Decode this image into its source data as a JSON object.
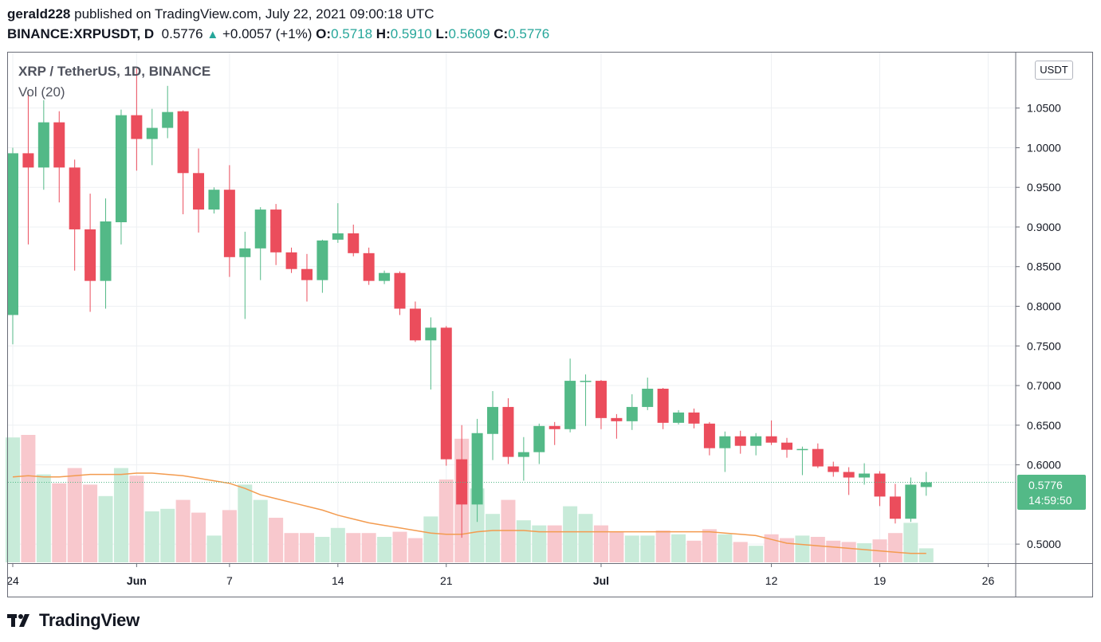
{
  "header": {
    "author": "gerald228",
    "published_text": "published on TradingView.com, July 22, 2021 09:00:18 UTC",
    "symbol_line": "BINANCE:XRPUSDT, D",
    "last": "0.5776",
    "change": "+0.0057 (+1%)",
    "o_label": "O:",
    "o_value": "0.5718",
    "h_label": "H:",
    "h_value": "0.5910",
    "l_label": "L:",
    "l_value": "0.5609",
    "c_label": "C:",
    "c_value": "0.5776"
  },
  "legend": {
    "title": "XRP / TetherUS, 1D, BINANCE",
    "volume": "Vol (20)"
  },
  "axis": {
    "unit": "USDT"
  },
  "price_tag": {
    "price": "0.5776",
    "countdown": "14:59:50"
  },
  "footer": {
    "brand": "TradingView"
  },
  "colors": {
    "up": "#53b987",
    "down": "#eb4d5c",
    "vol_up": "#c8ebd9",
    "vol_down": "#f8c8cd",
    "ma": "#f39b4f"
  },
  "chart_data": {
    "type": "candlestick",
    "title": "XRP / TetherUS, 1D, BINANCE",
    "y_ticks": [
      "1.0500",
      "1.0000",
      "0.9500",
      "0.9000",
      "0.8500",
      "0.8000",
      "0.7500",
      "0.7000",
      "0.6500",
      "0.6000",
      "0.5000"
    ],
    "y_tick_values": [
      1.05,
      1.0,
      0.95,
      0.9,
      0.85,
      0.8,
      0.75,
      0.7,
      0.65,
      0.6,
      0.5
    ],
    "x_ticks": [
      "24",
      "Jun",
      "7",
      "14",
      "21",
      "Jul",
      "12",
      "19",
      "26"
    ],
    "x_tick_days": [
      0,
      8,
      14,
      21,
      28,
      38,
      49,
      56,
      63
    ],
    "ylim": [
      0.476,
      1.12
    ],
    "candles": [
      {
        "d": 0,
        "o": 0.789,
        "h": 1.0,
        "l": 0.752,
        "c": 0.993
      },
      {
        "d": 1,
        "o": 0.993,
        "h": 1.07,
        "l": 0.878,
        "c": 0.975
      },
      {
        "d": 2,
        "o": 0.975,
        "h": 1.06,
        "l": 0.947,
        "c": 1.032
      },
      {
        "d": 3,
        "o": 1.032,
        "h": 1.046,
        "l": 0.931,
        "c": 0.975
      },
      {
        "d": 4,
        "o": 0.975,
        "h": 0.985,
        "l": 0.845,
        "c": 0.897
      },
      {
        "d": 5,
        "o": 0.897,
        "h": 0.942,
        "l": 0.793,
        "c": 0.832
      },
      {
        "d": 6,
        "o": 0.832,
        "h": 0.936,
        "l": 0.797,
        "c": 0.907
      },
      {
        "d": 7,
        "o": 0.906,
        "h": 1.048,
        "l": 0.878,
        "c": 1.041
      },
      {
        "d": 8,
        "o": 1.041,
        "h": 1.1,
        "l": 0.971,
        "c": 1.011
      },
      {
        "d": 9,
        "o": 1.011,
        "h": 1.049,
        "l": 0.978,
        "c": 1.025
      },
      {
        "d": 10,
        "o": 1.025,
        "h": 1.078,
        "l": 1.012,
        "c": 1.045
      },
      {
        "d": 11,
        "o": 1.046,
        "h": 1.047,
        "l": 0.916,
        "c": 0.968
      },
      {
        "d": 12,
        "o": 0.968,
        "h": 0.999,
        "l": 0.893,
        "c": 0.922
      },
      {
        "d": 13,
        "o": 0.922,
        "h": 0.95,
        "l": 0.917,
        "c": 0.947
      },
      {
        "d": 14,
        "o": 0.947,
        "h": 0.978,
        "l": 0.837,
        "c": 0.862
      },
      {
        "d": 15,
        "o": 0.862,
        "h": 0.894,
        "l": 0.784,
        "c": 0.873
      },
      {
        "d": 16,
        "o": 0.873,
        "h": 0.925,
        "l": 0.833,
        "c": 0.922
      },
      {
        "d": 17,
        "o": 0.922,
        "h": 0.929,
        "l": 0.852,
        "c": 0.868
      },
      {
        "d": 18,
        "o": 0.868,
        "h": 0.874,
        "l": 0.842,
        "c": 0.847
      },
      {
        "d": 19,
        "o": 0.847,
        "h": 0.866,
        "l": 0.806,
        "c": 0.833
      },
      {
        "d": 20,
        "o": 0.833,
        "h": 0.884,
        "l": 0.817,
        "c": 0.883
      },
      {
        "d": 21,
        "o": 0.884,
        "h": 0.93,
        "l": 0.88,
        "c": 0.892
      },
      {
        "d": 22,
        "o": 0.892,
        "h": 0.903,
        "l": 0.863,
        "c": 0.867
      },
      {
        "d": 23,
        "o": 0.867,
        "h": 0.874,
        "l": 0.827,
        "c": 0.832
      },
      {
        "d": 24,
        "o": 0.832,
        "h": 0.845,
        "l": 0.828,
        "c": 0.842
      },
      {
        "d": 25,
        "o": 0.842,
        "h": 0.844,
        "l": 0.789,
        "c": 0.797
      },
      {
        "d": 26,
        "o": 0.797,
        "h": 0.806,
        "l": 0.755,
        "c": 0.757
      },
      {
        "d": 27,
        "o": 0.757,
        "h": 0.786,
        "l": 0.695,
        "c": 0.773
      },
      {
        "d": 28,
        "o": 0.773,
        "h": 0.775,
        "l": 0.599,
        "c": 0.607
      },
      {
        "d": 29,
        "o": 0.607,
        "h": 0.65,
        "l": 0.508,
        "c": 0.55
      },
      {
        "d": 30,
        "o": 0.55,
        "h": 0.658,
        "l": 0.528,
        "c": 0.64
      },
      {
        "d": 31,
        "o": 0.639,
        "h": 0.693,
        "l": 0.606,
        "c": 0.673
      },
      {
        "d": 32,
        "o": 0.673,
        "h": 0.684,
        "l": 0.601,
        "c": 0.61
      },
      {
        "d": 33,
        "o": 0.61,
        "h": 0.635,
        "l": 0.58,
        "c": 0.616
      },
      {
        "d": 34,
        "o": 0.616,
        "h": 0.652,
        "l": 0.601,
        "c": 0.649
      },
      {
        "d": 35,
        "o": 0.649,
        "h": 0.654,
        "l": 0.625,
        "c": 0.645
      },
      {
        "d": 36,
        "o": 0.645,
        "h": 0.734,
        "l": 0.641,
        "c": 0.706
      },
      {
        "d": 37,
        "o": 0.705,
        "h": 0.714,
        "l": 0.649,
        "c": 0.706
      },
      {
        "d": 38,
        "o": 0.706,
        "h": 0.707,
        "l": 0.645,
        "c": 0.659
      },
      {
        "d": 39,
        "o": 0.659,
        "h": 0.664,
        "l": 0.633,
        "c": 0.655
      },
      {
        "d": 40,
        "o": 0.655,
        "h": 0.689,
        "l": 0.644,
        "c": 0.673
      },
      {
        "d": 41,
        "o": 0.673,
        "h": 0.71,
        "l": 0.669,
        "c": 0.696
      },
      {
        "d": 42,
        "o": 0.696,
        "h": 0.697,
        "l": 0.645,
        "c": 0.653
      },
      {
        "d": 43,
        "o": 0.653,
        "h": 0.669,
        "l": 0.651,
        "c": 0.666
      },
      {
        "d": 44,
        "o": 0.666,
        "h": 0.671,
        "l": 0.646,
        "c": 0.652
      },
      {
        "d": 45,
        "o": 0.652,
        "h": 0.654,
        "l": 0.612,
        "c": 0.621
      },
      {
        "d": 46,
        "o": 0.621,
        "h": 0.642,
        "l": 0.591,
        "c": 0.636
      },
      {
        "d": 47,
        "o": 0.636,
        "h": 0.643,
        "l": 0.614,
        "c": 0.624
      },
      {
        "d": 48,
        "o": 0.624,
        "h": 0.64,
        "l": 0.612,
        "c": 0.636
      },
      {
        "d": 49,
        "o": 0.636,
        "h": 0.656,
        "l": 0.625,
        "c": 0.628
      },
      {
        "d": 50,
        "o": 0.628,
        "h": 0.634,
        "l": 0.609,
        "c": 0.619
      },
      {
        "d": 51,
        "o": 0.619,
        "h": 0.623,
        "l": 0.587,
        "c": 0.62
      },
      {
        "d": 52,
        "o": 0.62,
        "h": 0.627,
        "l": 0.596,
        "c": 0.598
      },
      {
        "d": 53,
        "o": 0.598,
        "h": 0.604,
        "l": 0.585,
        "c": 0.591
      },
      {
        "d": 54,
        "o": 0.591,
        "h": 0.597,
        "l": 0.562,
        "c": 0.584
      },
      {
        "d": 55,
        "o": 0.584,
        "h": 0.602,
        "l": 0.575,
        "c": 0.589
      },
      {
        "d": 56,
        "o": 0.589,
        "h": 0.592,
        "l": 0.548,
        "c": 0.56
      },
      {
        "d": 57,
        "o": 0.56,
        "h": 0.576,
        "l": 0.526,
        "c": 0.532
      },
      {
        "d": 58,
        "o": 0.532,
        "h": 0.584,
        "l": 0.528,
        "c": 0.575
      },
      {
        "d": 59,
        "o": 0.572,
        "h": 0.591,
        "l": 0.561,
        "c": 0.578
      }
    ],
    "volume_series": {
      "name": "Vol (20)",
      "relative_heights": [
        0.98,
        1.0,
        0.69,
        0.62,
        0.74,
        0.61,
        0.52,
        0.74,
        0.68,
        0.4,
        0.42,
        0.49,
        0.39,
        0.21,
        0.41,
        0.61,
        0.49,
        0.35,
        0.23,
        0.23,
        0.2,
        0.27,
        0.23,
        0.23,
        0.2,
        0.24,
        0.19,
        0.36,
        0.65,
        0.97,
        0.58,
        0.38,
        0.49,
        0.33,
        0.29,
        0.29,
        0.44,
        0.38,
        0.29,
        0.24,
        0.21,
        0.21,
        0.25,
        0.22,
        0.17,
        0.26,
        0.22,
        0.16,
        0.13,
        0.22,
        0.19,
        0.21,
        0.2,
        0.17,
        0.16,
        0.15,
        0.18,
        0.23,
        0.31,
        0.11
      ],
      "ma_relative": [
        0.67,
        0.68,
        0.67,
        0.67,
        0.68,
        0.69,
        0.69,
        0.69,
        0.7,
        0.7,
        0.69,
        0.68,
        0.66,
        0.64,
        0.62,
        0.58,
        0.53,
        0.5,
        0.47,
        0.44,
        0.41,
        0.37,
        0.34,
        0.31,
        0.29,
        0.27,
        0.25,
        0.23,
        0.22,
        0.22,
        0.24,
        0.25,
        0.25,
        0.25,
        0.24,
        0.24,
        0.24,
        0.24,
        0.24,
        0.24,
        0.24,
        0.24,
        0.24,
        0.24,
        0.24,
        0.24,
        0.23,
        0.22,
        0.21,
        0.18,
        0.15,
        0.14,
        0.13,
        0.12,
        0.11,
        0.1,
        0.09,
        0.08,
        0.07,
        0.07
      ]
    }
  }
}
